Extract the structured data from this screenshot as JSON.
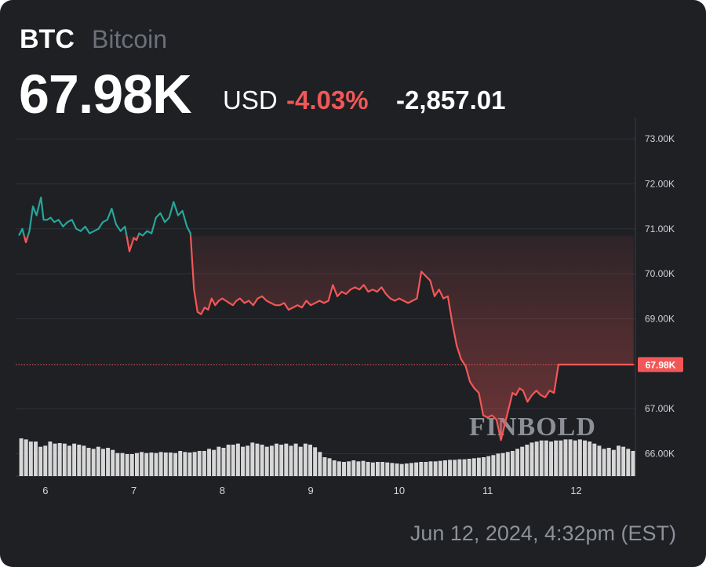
{
  "header": {
    "symbol": "BTC",
    "name": "Bitcoin",
    "price": "67.98K",
    "currency": "USD",
    "change_pct": "-4.03%",
    "change_abs": "-2,857.01"
  },
  "timestamp": "Jun 12, 2024, 4:32pm (EST)",
  "watermark": "FINBOLD",
  "colors": {
    "background": "#1e2024",
    "up": "#26a69a",
    "down": "#f25757",
    "volume": "#d7d7d7"
  },
  "chart_data": {
    "type": "line",
    "y_ticks": [
      "73.00K",
      "72.00K",
      "71.00K",
      "70.00K",
      "69.00K",
      "67.00K",
      "66.00K"
    ],
    "x_ticks": [
      "6",
      "7",
      "8",
      "9",
      "10",
      "11",
      "12"
    ],
    "x_tick_values": [
      6,
      7,
      8,
      9,
      10,
      11,
      12
    ],
    "ylim": [
      65.5,
      73.3
    ],
    "xlim": [
      5.7,
      12.67
    ],
    "current_label": "67.98K",
    "current_value": 67.98,
    "baseline": 70.837,
    "grid": true,
    "series": [
      {
        "x": [
          5.7,
          5.74,
          5.78,
          5.82,
          5.86,
          5.9,
          5.95,
          5.98,
          6.02,
          6.06,
          6.1,
          6.15,
          6.2,
          6.25,
          6.3,
          6.35,
          6.4,
          6.45,
          6.5,
          6.55,
          6.6,
          6.65,
          6.7,
          6.75,
          6.8,
          6.85,
          6.9,
          6.95,
          7.0,
          7.03,
          7.06,
          7.1,
          7.15,
          7.2,
          7.25,
          7.3,
          7.35,
          7.4,
          7.45,
          7.5,
          7.55,
          7.6,
          7.64,
          7.68,
          7.72,
          7.76,
          7.8,
          7.84,
          7.88,
          7.92,
          7.96,
          8.0,
          8.04,
          8.08,
          8.12,
          8.16,
          8.2,
          8.25,
          8.3,
          8.35,
          8.4,
          8.45,
          8.5,
          8.55,
          8.6,
          8.65,
          8.7,
          8.75,
          8.8,
          8.85,
          8.9,
          8.95,
          9.0,
          9.05,
          9.1,
          9.15,
          9.2,
          9.25,
          9.3,
          9.35,
          9.4,
          9.45,
          9.5,
          9.55,
          9.6,
          9.65,
          9.7,
          9.75,
          9.8,
          9.85,
          9.9,
          9.95,
          10.0,
          10.05,
          10.1,
          10.15,
          10.2,
          10.25,
          10.3,
          10.35,
          10.4,
          10.45,
          10.5,
          10.55,
          10.6,
          10.65,
          10.7,
          10.75,
          10.8,
          10.85,
          10.9,
          10.95,
          11.0,
          11.05,
          11.1,
          11.15,
          11.2,
          11.25,
          11.28,
          11.32,
          11.36,
          11.4,
          11.45,
          11.5,
          11.55,
          11.6,
          11.65,
          11.7,
          11.75,
          11.8,
          11.85,
          11.9,
          11.95,
          12.0,
          12.05,
          12.1,
          12.15,
          12.2,
          12.25,
          12.3,
          12.35,
          12.4,
          12.45,
          12.5,
          12.55,
          12.6,
          12.65
        ],
        "values": [
          70.85,
          71.0,
          70.7,
          70.95,
          71.5,
          71.3,
          71.7,
          71.2,
          71.2,
          71.25,
          71.15,
          71.2,
          71.05,
          71.15,
          71.2,
          71.0,
          70.95,
          71.05,
          70.9,
          70.95,
          71.0,
          71.15,
          71.2,
          71.45,
          71.1,
          70.95,
          71.05,
          70.5,
          70.8,
          70.75,
          70.9,
          70.85,
          70.95,
          70.9,
          71.25,
          71.35,
          71.15,
          71.25,
          71.6,
          71.3,
          71.4,
          71.05,
          70.9,
          69.65,
          69.15,
          69.1,
          69.25,
          69.2,
          69.45,
          69.3,
          69.4,
          69.45,
          69.4,
          69.35,
          69.3,
          69.4,
          69.45,
          69.35,
          69.4,
          69.3,
          69.45,
          69.5,
          69.4,
          69.35,
          69.3,
          69.3,
          69.35,
          69.2,
          69.25,
          69.3,
          69.25,
          69.4,
          69.3,
          69.35,
          69.4,
          69.35,
          69.4,
          69.75,
          69.5,
          69.6,
          69.55,
          69.65,
          69.7,
          69.65,
          69.75,
          69.6,
          69.65,
          69.6,
          69.7,
          69.55,
          69.45,
          69.4,
          69.45,
          69.4,
          69.35,
          69.4,
          69.45,
          70.05,
          69.95,
          69.85,
          69.5,
          69.65,
          69.45,
          69.5,
          68.9,
          68.4,
          68.1,
          67.95,
          67.6,
          67.45,
          67.35,
          66.85,
          66.8,
          66.85,
          66.75,
          66.3,
          66.7,
          67.1,
          67.35,
          67.3,
          67.45,
          67.4,
          67.15,
          67.3,
          67.4,
          67.3,
          67.25,
          67.4,
          67.35,
          67.98,
          67.98,
          67.98,
          67.98,
          67.98,
          67.98,
          67.98,
          67.98,
          67.98,
          67.98,
          67.98,
          67.98,
          67.98,
          67.98,
          67.98,
          67.98,
          67.98,
          67.98
        ]
      }
    ],
    "volume": [
      0.72,
      0.7,
      0.66,
      0.66,
      0.56,
      0.58,
      0.66,
      0.62,
      0.63,
      0.62,
      0.58,
      0.62,
      0.6,
      0.58,
      0.54,
      0.52,
      0.56,
      0.52,
      0.54,
      0.5,
      0.44,
      0.44,
      0.42,
      0.42,
      0.44,
      0.46,
      0.44,
      0.45,
      0.44,
      0.46,
      0.45,
      0.45,
      0.44,
      0.48,
      0.46,
      0.45,
      0.46,
      0.48,
      0.48,
      0.52,
      0.5,
      0.56,
      0.54,
      0.6,
      0.6,
      0.62,
      0.56,
      0.58,
      0.64,
      0.62,
      0.6,
      0.56,
      0.58,
      0.62,
      0.6,
      0.62,
      0.58,
      0.62,
      0.56,
      0.62,
      0.6,
      0.55,
      0.46,
      0.36,
      0.34,
      0.3,
      0.28,
      0.27,
      0.28,
      0.3,
      0.28,
      0.29,
      0.27,
      0.26,
      0.27,
      0.27,
      0.26,
      0.25,
      0.24,
      0.23,
      0.24,
      0.25,
      0.26,
      0.27,
      0.27,
      0.28,
      0.28,
      0.29,
      0.3,
      0.31,
      0.31,
      0.32,
      0.32,
      0.33,
      0.34,
      0.35,
      0.36,
      0.38,
      0.4,
      0.43,
      0.44,
      0.46,
      0.48,
      0.52,
      0.56,
      0.6,
      0.64,
      0.66,
      0.68,
      0.68,
      0.66,
      0.68,
      0.68,
      0.7,
      0.7,
      0.68,
      0.7,
      0.68,
      0.66,
      0.62,
      0.58,
      0.52,
      0.54,
      0.5,
      0.58,
      0.56,
      0.52,
      0.48
    ]
  }
}
